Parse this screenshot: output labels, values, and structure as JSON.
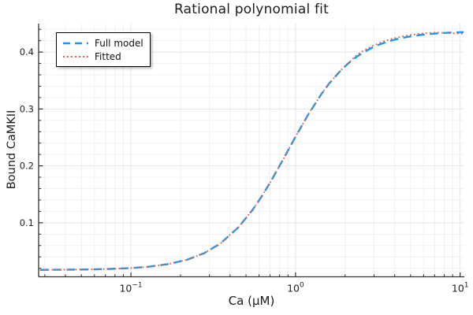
{
  "chart_data": {
    "type": "line",
    "title": "Rational polynomial fit",
    "xlabel": "Ca (μM)",
    "ylabel": "Bound CaMKII",
    "x_scale": "log10",
    "xlim": [
      0.0275,
      10.6
    ],
    "ylim": [
      0.005,
      0.45
    ],
    "grid": {
      "show": true,
      "minor_color": "#f0f0f0",
      "major_color": "#e4e4e4"
    },
    "legend": {
      "position": "top-left"
    },
    "x_axis": {
      "major_ticks": [
        0.1,
        1,
        10
      ],
      "major_labels": [
        {
          "base": "10",
          "exp": "−1"
        },
        {
          "base": "10",
          "exp": "0"
        },
        {
          "base": "10",
          "exp": "1"
        }
      ],
      "minor_ticks": [
        0.03,
        0.04,
        0.05,
        0.06,
        0.07,
        0.08,
        0.09,
        0.2,
        0.3,
        0.4,
        0.5,
        0.6,
        0.7,
        0.8,
        0.9,
        2,
        3,
        4,
        5,
        6,
        7,
        8,
        9
      ]
    },
    "y_axis": {
      "major_ticks": [
        0.1,
        0.2,
        0.3,
        0.4
      ],
      "major_labels": [
        "0.1",
        "0.2",
        "0.3",
        "0.4"
      ],
      "minor_ticks": [
        0.02,
        0.04,
        0.06,
        0.08,
        0.12,
        0.14,
        0.16,
        0.18,
        0.22,
        0.24,
        0.26,
        0.28,
        0.32,
        0.34,
        0.36,
        0.38,
        0.42,
        0.44
      ]
    },
    "series": [
      {
        "name": "Full model",
        "color": "#129bf7",
        "style": "dashed",
        "width": 2.4,
        "x": [
          0.028,
          0.04,
          0.055,
          0.075,
          0.1,
          0.13,
          0.17,
          0.22,
          0.28,
          0.35,
          0.45,
          0.55,
          0.62,
          0.7,
          0.85,
          1.0,
          1.2,
          1.45,
          1.6,
          1.9,
          2.1,
          2.35,
          2.6,
          2.9,
          3.2,
          3.6,
          4.0,
          4.5,
          5.0,
          5.7,
          6.5,
          7.2,
          8.0,
          9.0,
          10.0,
          10.5
        ],
        "y": [
          0.0172,
          0.0174,
          0.0179,
          0.0188,
          0.0203,
          0.0229,
          0.0275,
          0.0351,
          0.0469,
          0.0637,
          0.0921,
          0.1232,
          0.1454,
          0.1704,
          0.2138,
          0.2512,
          0.2913,
          0.3281,
          0.3447,
          0.369,
          0.3806,
          0.3917,
          0.4,
          0.4072,
          0.4127,
          0.418,
          0.4218,
          0.4252,
          0.4276,
          0.4299,
          0.4317,
          0.4327,
          0.4336,
          0.4344,
          0.4349,
          0.4351
        ]
      },
      {
        "name": "Fitted",
        "color": "#e8604c",
        "style": "dotted",
        "width": 1.9,
        "x": [
          0.028,
          0.04,
          0.055,
          0.075,
          0.1,
          0.13,
          0.17,
          0.22,
          0.28,
          0.35,
          0.45,
          0.55,
          0.62,
          0.7,
          0.85,
          1.0,
          1.2,
          1.45,
          1.6,
          1.9,
          2.1,
          2.35,
          2.6,
          2.9,
          3.2,
          3.6,
          4.0,
          4.5,
          5.0,
          5.7,
          6.5,
          7.2,
          8.0,
          9.0,
          10.0,
          10.5
        ],
        "y": [
          0.0172,
          0.0174,
          0.0179,
          0.0188,
          0.0203,
          0.0229,
          0.0275,
          0.0351,
          0.0469,
          0.0637,
          0.0921,
          0.1232,
          0.1454,
          0.1704,
          0.2138,
          0.2512,
          0.2913,
          0.3281,
          0.3447,
          0.369,
          0.3806,
          0.3945,
          0.403,
          0.41,
          0.4156,
          0.4208,
          0.4246,
          0.4278,
          0.4302,
          0.4323,
          0.4337,
          0.4341,
          0.434,
          0.4331,
          0.4323,
          0.432
        ]
      }
    ]
  }
}
